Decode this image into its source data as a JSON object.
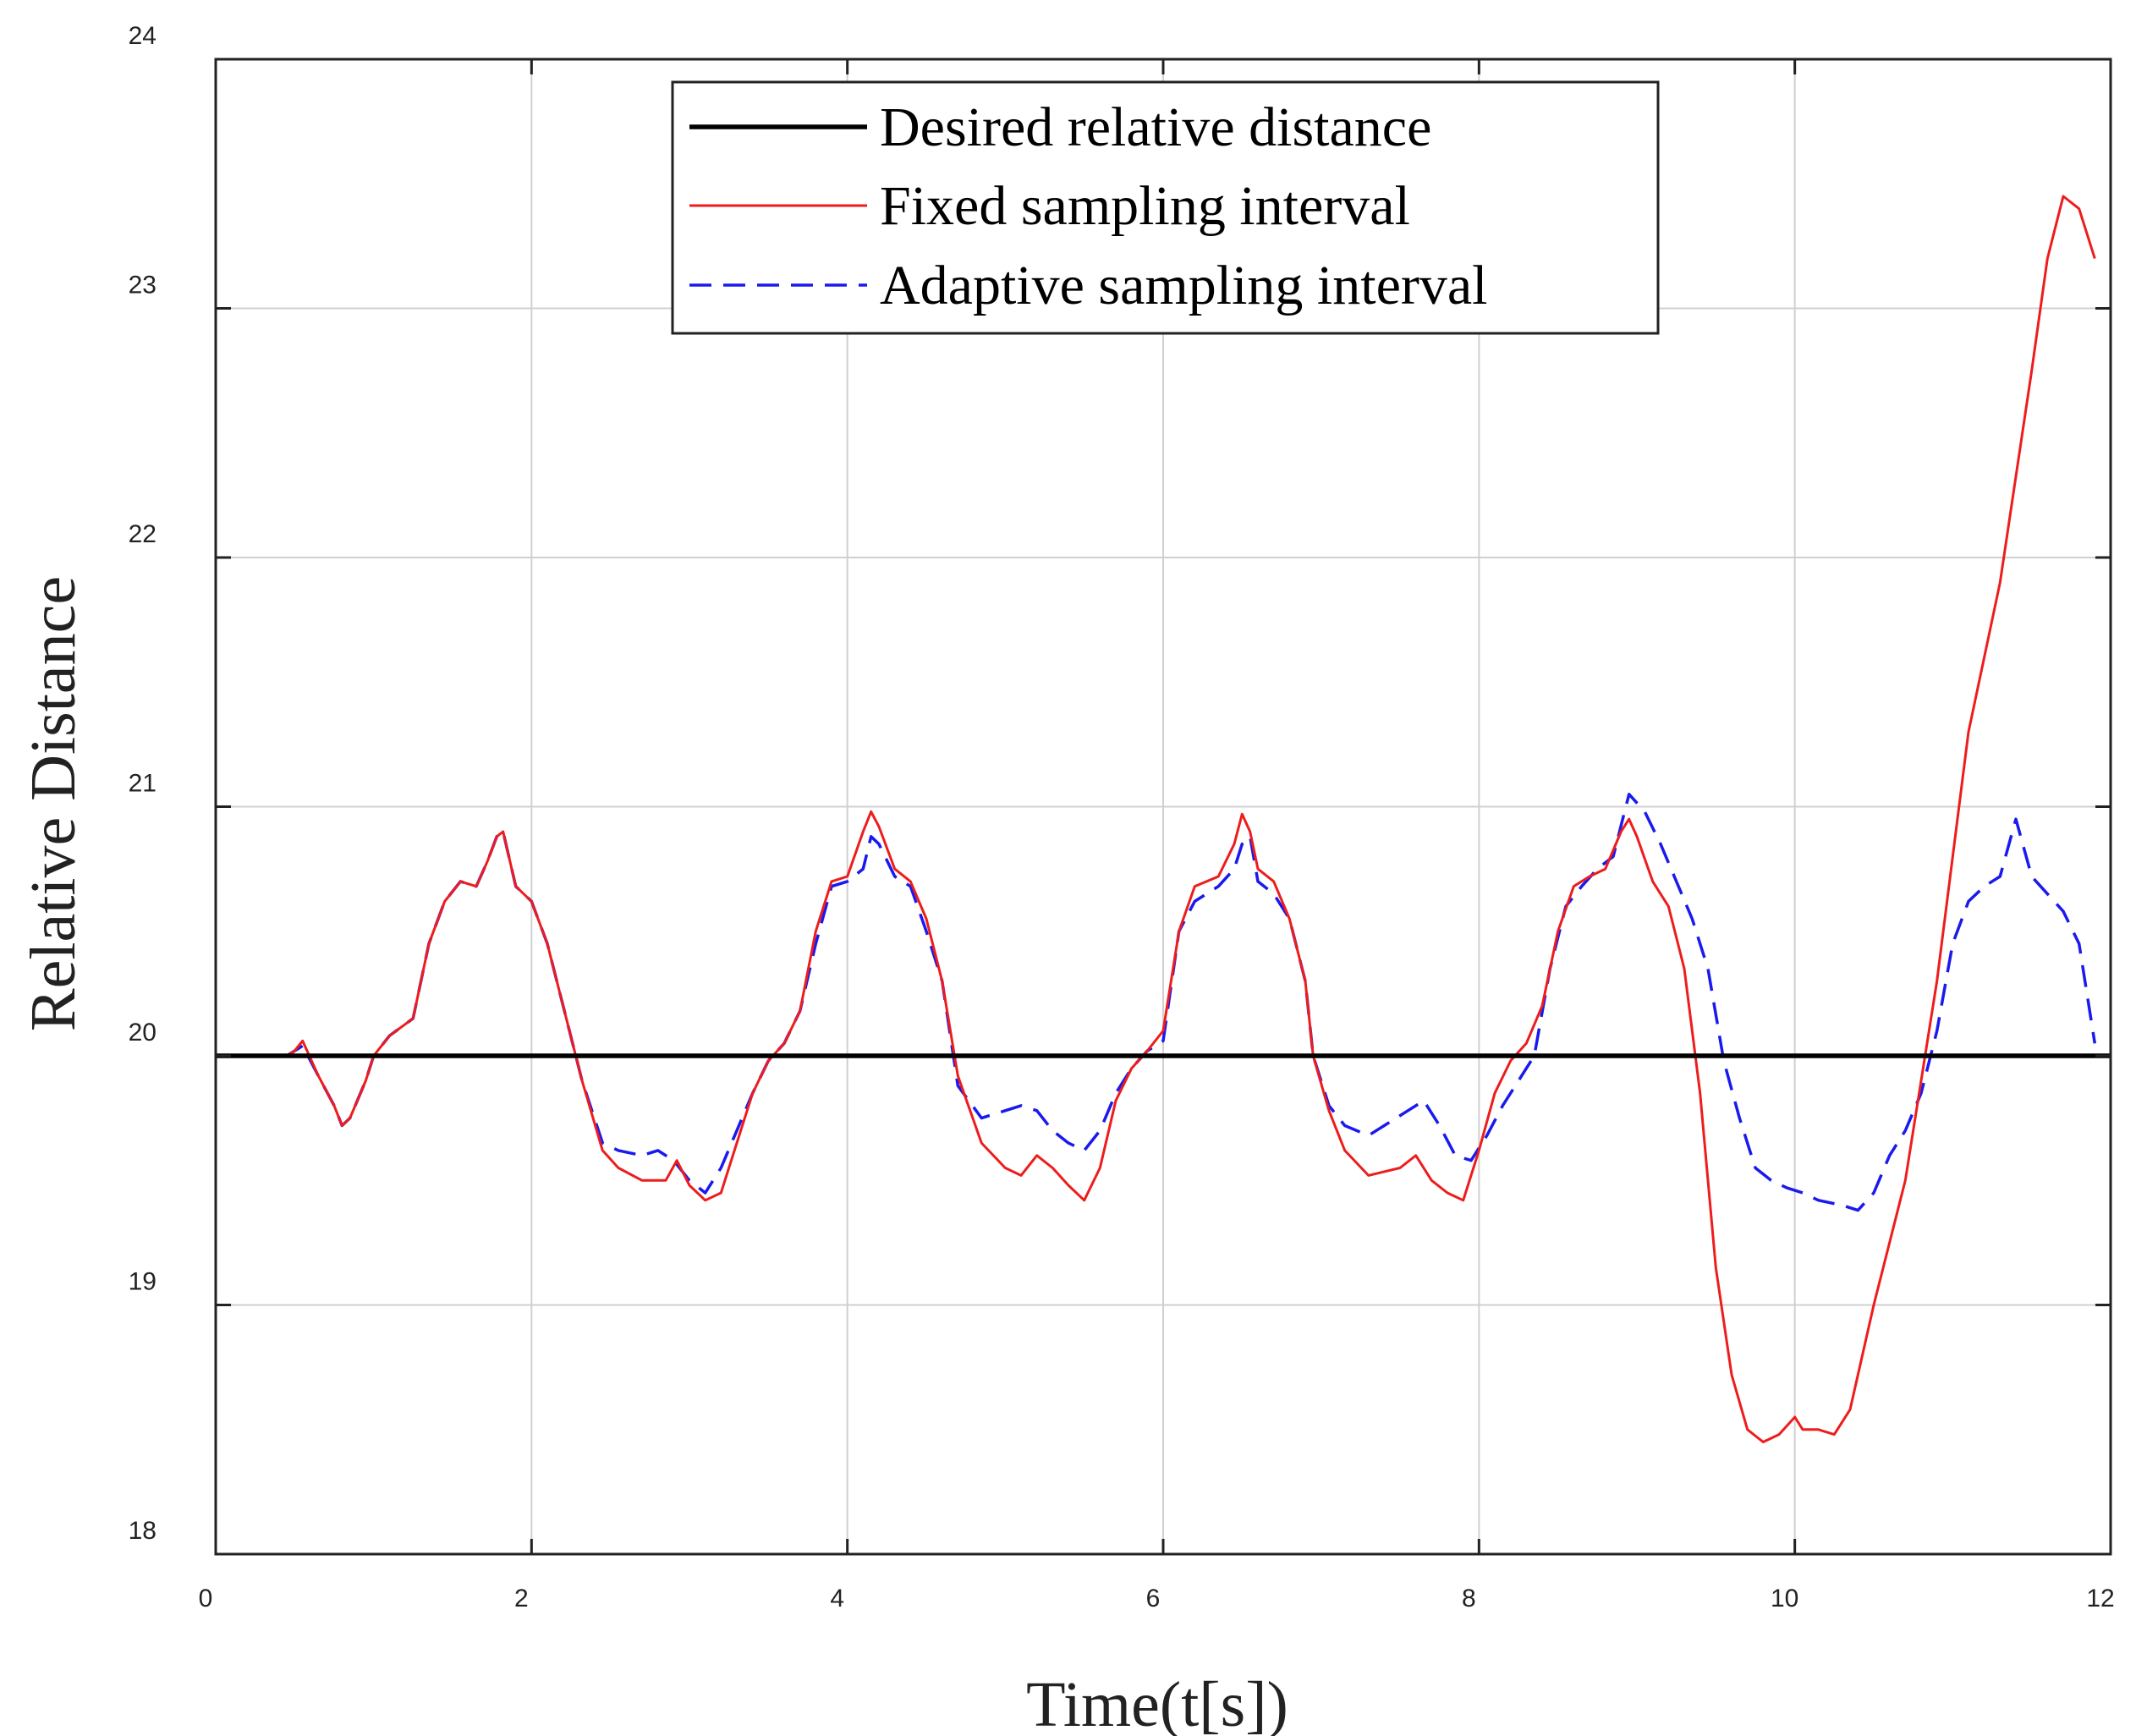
{
  "chart_data": {
    "type": "line",
    "title": "",
    "xlabel": "Time(t[s])",
    "ylabel": "Relative Distance",
    "xlim": [
      0,
      12
    ],
    "ylim": [
      18,
      24
    ],
    "xticks": [
      "0",
      "2",
      "4",
      "6",
      "8",
      "10",
      "12"
    ],
    "yticks": [
      "18",
      "19",
      "20",
      "21",
      "22",
      "23",
      "24"
    ],
    "grid": true,
    "legend_position": "top-center",
    "series": [
      {
        "name": "Desired relative distance",
        "color": "#000000",
        "style": "solid-thick",
        "x": [
          0,
          12
        ],
        "y": [
          20,
          20
        ]
      },
      {
        "name": "Fixed sampling interval",
        "color": "#ee1c1c",
        "style": "solid",
        "x": [
          0,
          0.3,
          0.45,
          0.5,
          0.55,
          0.65,
          0.75,
          0.8,
          0.85,
          0.95,
          1.0,
          1.1,
          1.25,
          1.35,
          1.45,
          1.55,
          1.65,
          1.72,
          1.78,
          1.82,
          1.9,
          2.0,
          2.1,
          2.2,
          2.32,
          2.45,
          2.55,
          2.7,
          2.85,
          2.92,
          3.0,
          3.1,
          3.2,
          3.3,
          3.4,
          3.5,
          3.6,
          3.7,
          3.8,
          3.9,
          4.0,
          4.1,
          4.15,
          4.2,
          4.3,
          4.4,
          4.5,
          4.6,
          4.7,
          4.85,
          5.0,
          5.1,
          5.2,
          5.3,
          5.4,
          5.5,
          5.6,
          5.7,
          5.8,
          5.9,
          6.0,
          6.1,
          6.2,
          6.35,
          6.45,
          6.5,
          6.55,
          6.6,
          6.7,
          6.8,
          6.9,
          6.95,
          7.05,
          7.15,
          7.3,
          7.5,
          7.6,
          7.7,
          7.8,
          7.9,
          8.0,
          8.1,
          8.2,
          8.3,
          8.4,
          8.5,
          8.6,
          8.7,
          8.8,
          8.9,
          8.95,
          9.0,
          9.1,
          9.2,
          9.3,
          9.4,
          9.5,
          9.6,
          9.7,
          9.8,
          9.9,
          10.0,
          10.05,
          10.15,
          10.25,
          10.35,
          10.5,
          10.7,
          10.9,
          11.1,
          11.3,
          11.5,
          11.6,
          11.7,
          11.8,
          11.9
        ],
        "y": [
          20,
          20,
          20,
          20.02,
          20.06,
          19.92,
          19.8,
          19.72,
          19.75,
          19.9,
          20.0,
          20.08,
          20.15,
          20.45,
          20.62,
          20.7,
          20.68,
          20.78,
          20.88,
          20.9,
          20.68,
          20.62,
          20.45,
          20.2,
          19.9,
          19.62,
          19.55,
          19.5,
          19.5,
          19.58,
          19.48,
          19.42,
          19.45,
          19.65,
          19.85,
          19.98,
          20.05,
          20.18,
          20.5,
          20.7,
          20.72,
          20.9,
          20.98,
          20.92,
          20.75,
          20.7,
          20.55,
          20.3,
          19.92,
          19.65,
          19.55,
          19.52,
          19.6,
          19.55,
          19.48,
          19.42,
          19.55,
          19.82,
          19.95,
          20.02,
          20.1,
          20.5,
          20.68,
          20.72,
          20.85,
          20.97,
          20.9,
          20.75,
          20.7,
          20.55,
          20.3,
          20.0,
          19.78,
          19.62,
          19.52,
          19.55,
          19.6,
          19.5,
          19.45,
          19.42,
          19.62,
          19.85,
          19.98,
          20.05,
          20.2,
          20.5,
          20.68,
          20.72,
          20.75,
          20.9,
          20.95,
          20.88,
          20.7,
          20.6,
          20.35,
          19.85,
          19.15,
          18.72,
          18.5,
          18.45,
          18.48,
          18.55,
          18.5,
          18.5,
          18.48,
          18.58,
          19.0,
          19.5,
          20.3,
          21.3,
          21.9,
          22.75,
          23.2,
          23.45,
          23.4,
          23.2
        ]
      },
      {
        "name": "Adaptive sampling interval",
        "color": "#1a1aee",
        "style": "dashed",
        "x": [
          0,
          0.3,
          0.45,
          0.5,
          0.55,
          0.65,
          0.75,
          0.8,
          0.85,
          0.95,
          1.0,
          1.1,
          1.25,
          1.35,
          1.45,
          1.55,
          1.65,
          1.72,
          1.78,
          1.82,
          1.9,
          2.0,
          2.1,
          2.2,
          2.32,
          2.45,
          2.55,
          2.7,
          2.8,
          2.9,
          3.0,
          3.1,
          3.2,
          3.3,
          3.4,
          3.5,
          3.6,
          3.7,
          3.8,
          3.9,
          4.0,
          4.1,
          4.15,
          4.2,
          4.3,
          4.4,
          4.5,
          4.6,
          4.7,
          4.85,
          5.0,
          5.1,
          5.2,
          5.3,
          5.4,
          5.5,
          5.6,
          5.7,
          5.8,
          5.9,
          6.0,
          6.1,
          6.2,
          6.35,
          6.45,
          6.5,
          6.55,
          6.6,
          6.7,
          6.8,
          6.9,
          6.95,
          7.05,
          7.15,
          7.3,
          7.4,
          7.55,
          7.65,
          7.75,
          7.85,
          7.95,
          8.05,
          8.15,
          8.25,
          8.35,
          8.45,
          8.55,
          8.65,
          8.75,
          8.85,
          8.95,
          9.05,
          9.15,
          9.25,
          9.35,
          9.45,
          9.55,
          9.65,
          9.75,
          9.85,
          9.95,
          10.05,
          10.15,
          10.3,
          10.4,
          10.5,
          10.6,
          10.7,
          10.8,
          10.9,
          11.0,
          11.1,
          11.2,
          11.3,
          11.4,
          11.5,
          11.6,
          11.7,
          11.8,
          11.9
        ],
        "y": [
          20,
          20,
          20,
          20.02,
          20.04,
          19.92,
          19.8,
          19.72,
          19.75,
          19.9,
          20.0,
          20.08,
          20.15,
          20.45,
          20.62,
          20.7,
          20.68,
          20.78,
          20.88,
          20.9,
          20.68,
          20.62,
          20.45,
          20.2,
          19.9,
          19.65,
          19.62,
          19.6,
          19.62,
          19.58,
          19.5,
          19.45,
          19.55,
          19.7,
          19.85,
          19.98,
          20.05,
          20.18,
          20.45,
          20.68,
          20.7,
          20.75,
          20.88,
          20.85,
          20.72,
          20.68,
          20.5,
          20.3,
          19.88,
          19.75,
          19.78,
          19.8,
          19.78,
          19.7,
          19.65,
          19.62,
          19.7,
          19.85,
          19.95,
          20.02,
          20.06,
          20.5,
          20.62,
          20.68,
          20.75,
          20.85,
          20.88,
          20.7,
          20.65,
          20.55,
          20.3,
          20.0,
          19.8,
          19.72,
          19.68,
          19.72,
          19.78,
          19.82,
          19.72,
          19.6,
          19.58,
          19.68,
          19.8,
          19.9,
          20.0,
          20.35,
          20.6,
          20.68,
          20.75,
          20.8,
          21.05,
          20.98,
          20.85,
          20.7,
          20.55,
          20.35,
          19.98,
          19.75,
          19.55,
          19.5,
          19.47,
          19.45,
          19.42,
          19.4,
          19.38,
          19.45,
          19.6,
          19.7,
          19.85,
          20.1,
          20.45,
          20.62,
          20.68,
          20.72,
          20.95,
          20.72,
          20.65,
          20.58,
          20.45,
          20.05
        ]
      }
    ]
  }
}
